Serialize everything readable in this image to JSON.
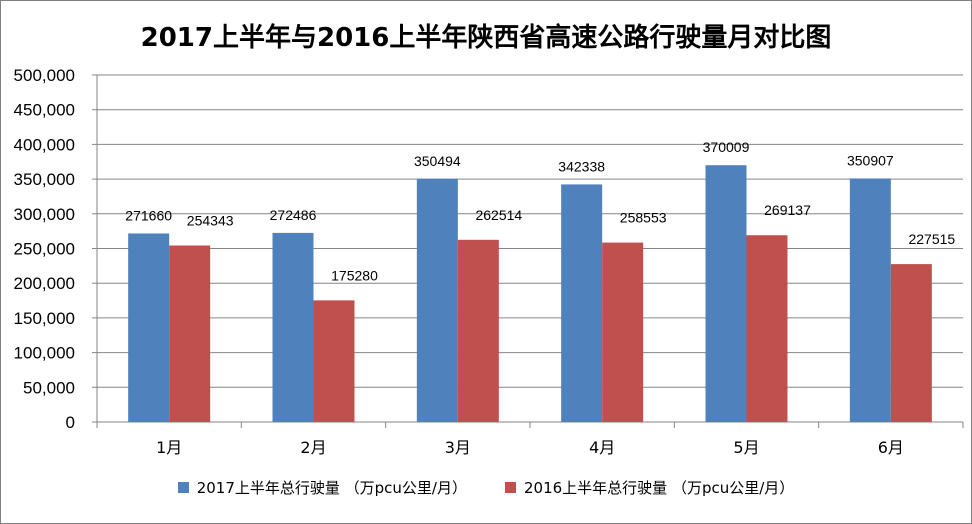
{
  "chart_data": {
    "type": "bar",
    "title": "2017上半年与2016上半年陕西省高速公路行驶量月对比图",
    "categories": [
      "1月",
      "2月",
      "3月",
      "4月",
      "5月",
      "6月"
    ],
    "series": [
      {
        "name": "2017上半年总行驶量 （万pcu公里/月）",
        "color": "#4f81bd",
        "values": [
          271660,
          272486,
          350494,
          342338,
          370009,
          350907
        ]
      },
      {
        "name": "2016上半年总行驶量 （万pcu公里/月）",
        "color": "#c0504d",
        "values": [
          254343,
          175280,
          262514,
          258553,
          269137,
          227515
        ]
      }
    ],
    "ylim": [
      0,
      500000
    ],
    "yticks": [
      "0",
      "50,000",
      "100,000",
      "150,000",
      "200,000",
      "250,000",
      "300,000",
      "350,000",
      "400,000",
      "450,000",
      "500,000"
    ],
    "grid": true,
    "legend_position": "bottom",
    "xlabel": "",
    "ylabel": ""
  }
}
